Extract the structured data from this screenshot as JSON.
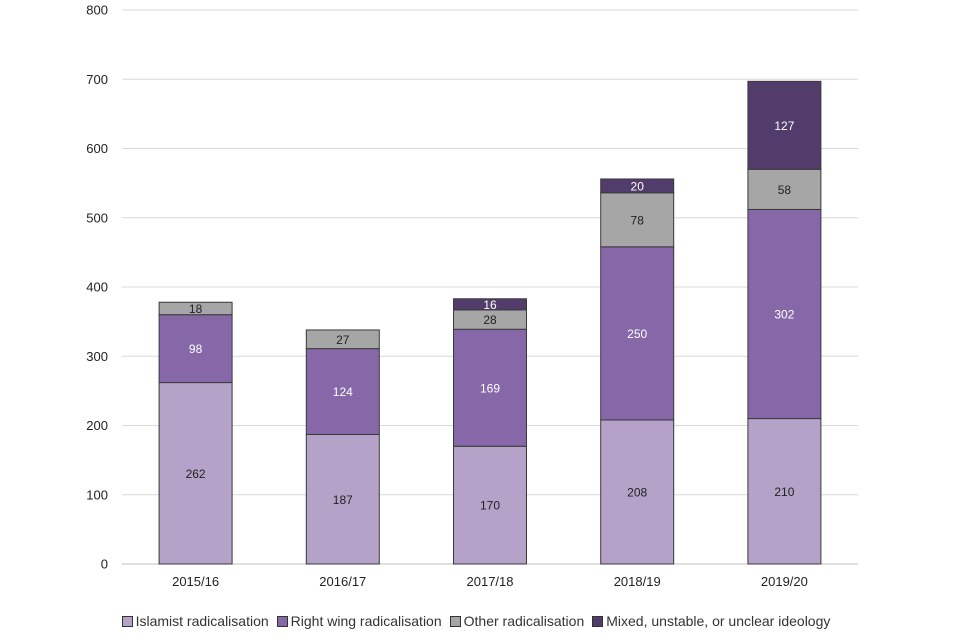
{
  "chart_data": {
    "type": "bar",
    "stacked": true,
    "categories": [
      "2015/16",
      "2016/17",
      "2017/18",
      "2018/19",
      "2019/20"
    ],
    "series": [
      {
        "name": "Islamist radicalisation",
        "values": [
          262,
          187,
          170,
          208,
          210
        ],
        "color": "#b5a2c8",
        "label_color": "#222222"
      },
      {
        "name": "Right wing radicalisation",
        "values": [
          98,
          124,
          169,
          250,
          302
        ],
        "color": "#8668a9",
        "label_color": "#ffffff"
      },
      {
        "name": "Other radicalisation",
        "values": [
          18,
          27,
          28,
          78,
          58
        ],
        "color": "#a6a6a6",
        "label_color": "#222222"
      },
      {
        "name": "Mixed, unstable, or unclear ideology",
        "values": [
          0,
          0,
          16,
          20,
          127
        ],
        "color": "#513c6b",
        "label_color": "#ffffff"
      }
    ],
    "title": "",
    "xlabel": "",
    "ylabel": "",
    "ylim": [
      0,
      800
    ],
    "yticks": [
      "0",
      "100",
      "200",
      "300",
      "400",
      "500",
      "600",
      "700",
      "800"
    ],
    "grid": true,
    "legend_position": "bottom"
  }
}
